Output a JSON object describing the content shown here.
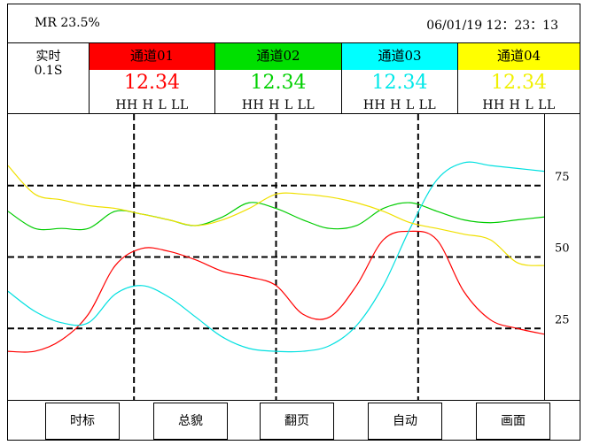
{
  "header": {
    "mr_text": "MR 23.5%",
    "datetime": "06/01/19  12：23：13"
  },
  "mode": {
    "label": "实时",
    "interval": "0.1S"
  },
  "channels": [
    {
      "name": "通道01",
      "value": "12.34",
      "alarms": "HH  H  L  LL",
      "color": "#ff0000",
      "value_color": "#ff0000"
    },
    {
      "name": "通道02",
      "value": "12.34",
      "alarms": "HH  H  L  LL",
      "color": "#00e000",
      "value_color": "#00d000"
    },
    {
      "name": "通道03",
      "value": "12.34",
      "alarms": "HH  H  L  LL",
      "color": "#00ffff",
      "value_color": "#00e8e8"
    },
    {
      "name": "通道04",
      "value": "12.34",
      "alarms": "HH  H  L  LL",
      "color": "#ffff00",
      "value_color": "#f0f000"
    }
  ],
  "buttons": [
    "时标",
    "总貌",
    "翻页",
    "自动",
    "画面"
  ],
  "chart_data": {
    "type": "line",
    "ylim": [
      0,
      100
    ],
    "y_ticks": [
      25,
      50,
      75
    ],
    "x": [
      0,
      5,
      10,
      15,
      20,
      25,
      30,
      35,
      40,
      45,
      50,
      55,
      60,
      65,
      70,
      75,
      80,
      85,
      90,
      95,
      100
    ],
    "series": [
      {
        "color": "#ff0000",
        "values": [
          17,
          17,
          21,
          30,
          47,
          53,
          52,
          49,
          45,
          43,
          40,
          30,
          29,
          40,
          56,
          59,
          56,
          38,
          28,
          25,
          23
        ]
      },
      {
        "color": "#00cc00",
        "values": [
          66,
          60,
          60,
          60,
          66,
          65,
          63,
          61,
          64,
          69,
          67,
          63,
          60,
          61,
          67,
          69,
          66,
          63,
          62,
          63,
          64
        ]
      },
      {
        "color": "#00e0e0",
        "values": [
          38,
          31,
          27,
          27,
          37,
          40,
          36,
          29,
          22,
          18,
          17,
          17,
          19,
          26,
          40,
          60,
          77,
          83,
          82,
          81,
          80
        ]
      },
      {
        "color": "#f0e000",
        "values": [
          82,
          72,
          70,
          68,
          67,
          65,
          63,
          61,
          63,
          67,
          72,
          72,
          71,
          69,
          66,
          62,
          60,
          58,
          56,
          48,
          47
        ]
      }
    ]
  }
}
